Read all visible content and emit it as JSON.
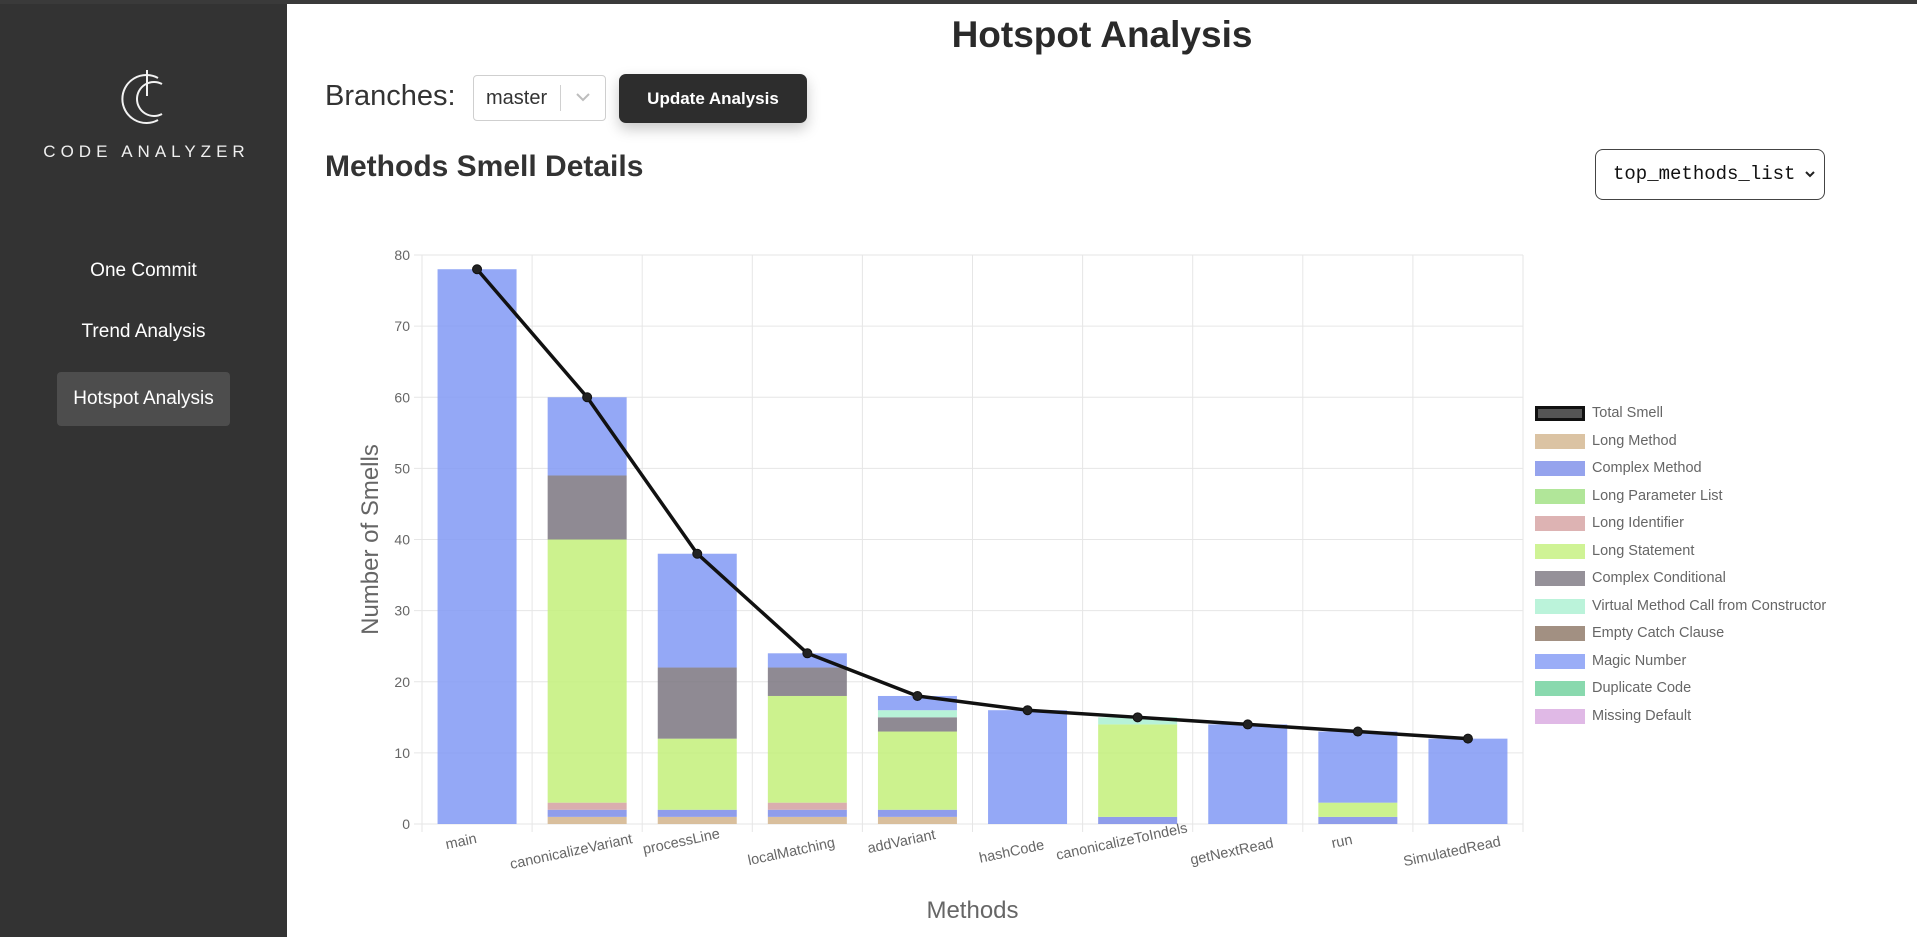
{
  "app": {
    "logo_text": "CODE ANALYZER",
    "page_title": "Hotspot Analysis"
  },
  "sidebar": {
    "items": [
      {
        "label": "One Commit",
        "active": false
      },
      {
        "label": "Trend Analysis",
        "active": false
      },
      {
        "label": "Hotspot Analysis",
        "active": true
      }
    ]
  },
  "controls": {
    "branches_label": "Branches:",
    "branch_value": "master",
    "update_label": "Update Analysis",
    "list_value": "top_methods_list"
  },
  "section_title": "Methods Smell Details",
  "colors": {
    "sidebar_bg": "#333333",
    "button_bg": "#2d2d2d"
  },
  "chart_data": {
    "type": "bar",
    "stacked": true,
    "title": "",
    "xlabel": "Methods",
    "ylabel": "Number of Smells",
    "ylim": [
      0,
      80
    ],
    "yticks": [
      0,
      10,
      20,
      30,
      40,
      50,
      60,
      70,
      80
    ],
    "grid": true,
    "legend_position": "right",
    "categories": [
      "main",
      "canonicalizeVariant",
      "processLine",
      "localMatching",
      "addVariant",
      "hashCode",
      "canonicalizeToIndels",
      "getNextRead",
      "run",
      "SimulatedRead"
    ],
    "series": [
      {
        "name": "Long Method",
        "color": "#d2b48c",
        "values": [
          0,
          1,
          1,
          1,
          1,
          0,
          0,
          0,
          0,
          0
        ]
      },
      {
        "name": "Complex Method",
        "color": "#7b8ce8",
        "values": [
          0,
          1,
          1,
          1,
          1,
          0,
          1,
          0,
          1,
          0
        ]
      },
      {
        "name": "Long Parameter List",
        "color": "#9ee07f",
        "values": [
          0,
          0,
          0,
          0,
          0,
          0,
          0,
          0,
          0,
          0
        ]
      },
      {
        "name": "Long Identifier",
        "color": "#d4a0a0",
        "values": [
          0,
          1,
          0,
          1,
          0,
          0,
          0,
          0,
          0,
          0
        ]
      },
      {
        "name": "Long Statement",
        "color": "#c3f07a",
        "values": [
          0,
          37,
          10,
          15,
          11,
          0,
          13,
          0,
          2,
          0
        ]
      },
      {
        "name": "Complex Conditional",
        "color": "#7b7680",
        "values": [
          0,
          9,
          10,
          4,
          2,
          0,
          0,
          0,
          0,
          0
        ]
      },
      {
        "name": "Virtual Method Call from Constructor",
        "color": "#aaf0d1",
        "values": [
          0,
          0,
          0,
          0,
          1,
          0,
          1,
          0,
          0,
          0
        ]
      },
      {
        "name": "Empty Catch Clause",
        "color": "#8b7463",
        "values": [
          0,
          0,
          0,
          0,
          0,
          0,
          0,
          0,
          0,
          0
        ]
      },
      {
        "name": "Magic Number",
        "color": "#8199f5",
        "values": [
          78,
          11,
          16,
          2,
          2,
          16,
          0,
          14,
          10,
          12
        ]
      },
      {
        "name": "Duplicate Code",
        "color": "#6ccf9a",
        "values": [
          0,
          0,
          0,
          0,
          0,
          0,
          0,
          0,
          0,
          0
        ]
      },
      {
        "name": "Missing Default",
        "color": "#d8a8e0",
        "values": [
          0,
          0,
          0,
          0,
          0,
          0,
          0,
          0,
          0,
          0
        ]
      }
    ],
    "line": {
      "name": "Total Smell",
      "color": "#111111",
      "values": [
        78,
        60,
        38,
        24,
        18,
        16,
        15,
        14,
        13,
        12
      ]
    }
  }
}
